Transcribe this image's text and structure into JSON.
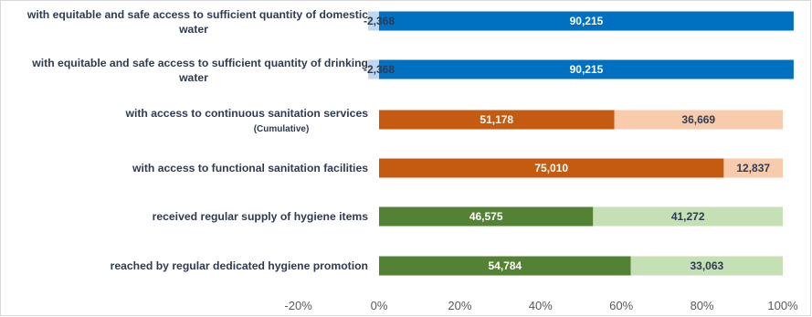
{
  "chart_data": {
    "type": "bar",
    "orientation": "horizontal",
    "stacked": "percent",
    "title": "",
    "xlabel": "",
    "ylabel": "",
    "xlim": [
      -0.2,
      1.0
    ],
    "x_ticks": [
      "-20%",
      "0%",
      "20%",
      "40%",
      "60%",
      "80%",
      "100%"
    ],
    "grid": false,
    "legend": "none",
    "categories": [
      {
        "label": "with equitable and safe access to sufficient quantity of domestic",
        "sublabel": "water"
      },
      {
        "label": "with equitable and safe access to sufficient quantity of drinking",
        "sublabel": "water"
      },
      {
        "label": "with access to continuous sanitation services",
        "sublabel": "(Cumulative)"
      },
      {
        "label": "with access to functional sanitation facilities",
        "sublabel": ""
      },
      {
        "label": "received regular supply of hygiene items",
        "sublabel": ""
      },
      {
        "label": "reached by regular dedicated hygiene promotion",
        "sublabel": ""
      }
    ],
    "reached": [
      {
        "value": 90215,
        "text": "90,215"
      },
      {
        "value": 90215,
        "text": "90,215"
      },
      {
        "value": 51178,
        "text": "51,178"
      },
      {
        "value": 75010,
        "text": "75,010"
      },
      {
        "value": 46575,
        "text": "46,575"
      },
      {
        "value": 54784,
        "text": "54,784"
      }
    ],
    "remaining": [
      {
        "value": -2368,
        "text": "-2,368"
      },
      {
        "value": -2368,
        "text": "-2,368"
      },
      {
        "value": 36669,
        "text": "36,669"
      },
      {
        "value": 12837,
        "text": "12,837"
      },
      {
        "value": 41272,
        "text": "41,272"
      },
      {
        "value": 33063,
        "text": "33,063"
      }
    ],
    "colors": {
      "reached": [
        "#0070c0",
        "#0070c0",
        "#c55a11",
        "#c55a11",
        "#548235",
        "#548235"
      ],
      "remaining": [
        "#bdd7ee",
        "#bdd7ee",
        "#f8cbad",
        "#f8cbad",
        "#c5e0b4",
        "#c5e0b4"
      ],
      "reached_text": "#ffffff",
      "remaining_text": "#2f3b52",
      "category_text": "#2f3b52",
      "tick_text": "#595959",
      "border": "#d9d9d9"
    }
  }
}
